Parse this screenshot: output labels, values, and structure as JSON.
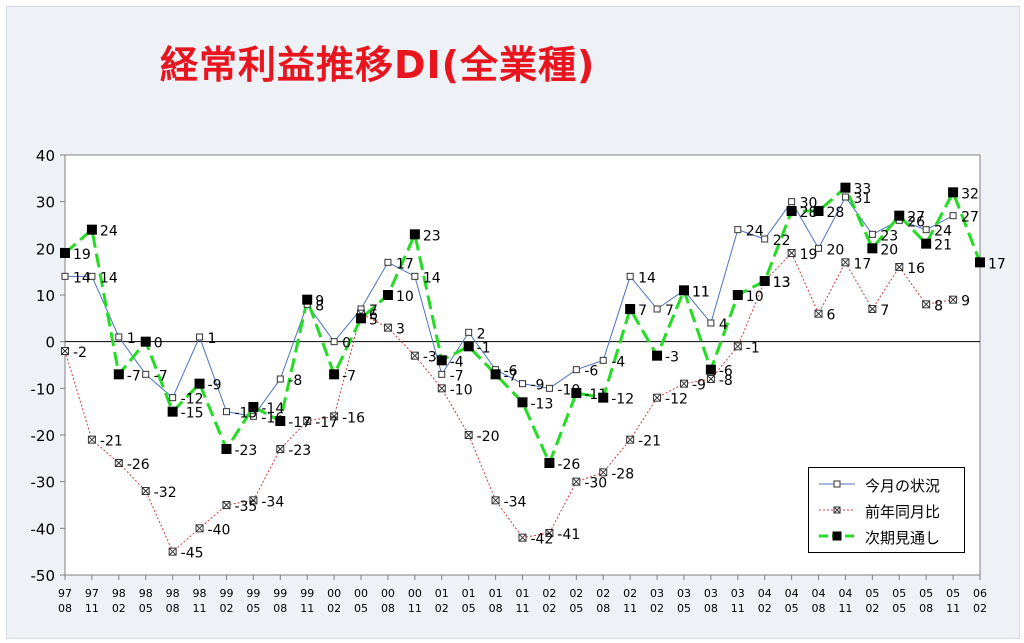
{
  "chart_data": {
    "type": "line",
    "title": "経常利益推移DI(全業種)",
    "ylim": [
      -50,
      40
    ],
    "yticks": [
      -50,
      -40,
      -30,
      -20,
      -10,
      0,
      10,
      20,
      30,
      40
    ],
    "grid": false,
    "legend_position": "bottom-right",
    "categories": [
      [
        "97",
        "08"
      ],
      [
        "97",
        "11"
      ],
      [
        "98",
        "02"
      ],
      [
        "98",
        "05"
      ],
      [
        "98",
        "08"
      ],
      [
        "98",
        "11"
      ],
      [
        "99",
        "02"
      ],
      [
        "99",
        "05"
      ],
      [
        "99",
        "08"
      ],
      [
        "99",
        "11"
      ],
      [
        "00",
        "02"
      ],
      [
        "00",
        "05"
      ],
      [
        "00",
        "08"
      ],
      [
        "00",
        "11"
      ],
      [
        "01",
        "02"
      ],
      [
        "01",
        "05"
      ],
      [
        "01",
        "08"
      ],
      [
        "01",
        "11"
      ],
      [
        "02",
        "02"
      ],
      [
        "02",
        "05"
      ],
      [
        "02",
        "08"
      ],
      [
        "02",
        "11"
      ],
      [
        "03",
        "02"
      ],
      [
        "03",
        "05"
      ],
      [
        "03",
        "08"
      ],
      [
        "03",
        "11"
      ],
      [
        "04",
        "02"
      ],
      [
        "04",
        "05"
      ],
      [
        "04",
        "08"
      ],
      [
        "04",
        "11"
      ],
      [
        "05",
        "02"
      ],
      [
        "05",
        "05"
      ],
      [
        "05",
        "08"
      ],
      [
        "05",
        "11"
      ],
      [
        "06",
        "02"
      ]
    ],
    "series": [
      {
        "name": "今月の状況",
        "color": "#4a72c4",
        "style": "solid-thin-open-square",
        "values": [
          14,
          14,
          1,
          -7,
          -12,
          1,
          -15,
          -16,
          -8,
          8,
          0,
          7,
          17,
          14,
          -7,
          2,
          -6,
          -9,
          -10,
          -6,
          -4,
          14,
          7,
          11,
          4,
          24,
          22,
          30,
          20,
          31,
          23,
          26,
          24,
          27,
          null
        ]
      },
      {
        "name": "前年同月比",
        "color": "#d23c3c",
        "style": "dotted-x-square",
        "values": [
          -2,
          -21,
          -26,
          -32,
          -45,
          -40,
          -35,
          -34,
          -23,
          -17,
          -16,
          6,
          3,
          -3,
          -10,
          -20,
          -34,
          -42,
          -41,
          -30,
          -28,
          -21,
          -12,
          -9,
          -8,
          -1,
          13,
          19,
          6,
          17,
          7,
          16,
          8,
          9,
          null
        ]
      },
      {
        "name": "次期見通し",
        "color": "#22dd22",
        "style": "dashed-thick-filled-square",
        "values": [
          19,
          24,
          -7,
          0,
          -15,
          -9,
          -23,
          -14,
          -17,
          9,
          -7,
          5,
          10,
          23,
          -4,
          -1,
          -7,
          -13,
          -26,
          -11,
          -12,
          7,
          -3,
          11,
          -6,
          10,
          13,
          28,
          28,
          33,
          20,
          27,
          21,
          32,
          17
        ]
      }
    ]
  }
}
